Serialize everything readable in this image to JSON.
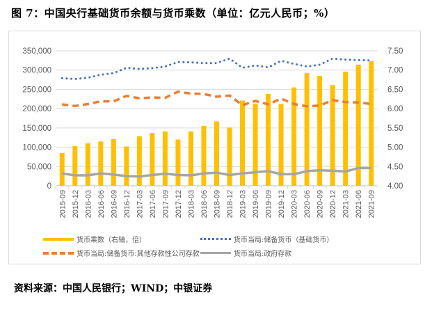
{
  "title": "图 7：中国央行基础货币余额与货币乘数（单位：亿元人民币；%）",
  "source": "资料来源：中国人民银行；WIND；中银证券",
  "colors": {
    "bar": "#FFC000",
    "base": "#4472C4",
    "other": "#ED7D31",
    "gov": "#A5A5A5",
    "grid": "#D9D9D9",
    "tick": "#595959"
  },
  "chart_data": {
    "type": "bar+line",
    "title": "",
    "categories": [
      "2015-09",
      "2015-12",
      "2016-03",
      "2016-06",
      "2016-09",
      "2016-12",
      "2017-03",
      "2017-06",
      "2017-09",
      "2017-12",
      "2018-03",
      "2018-06",
      "2018-09",
      "2018-12",
      "2019-03",
      "2019-06",
      "2019-09",
      "2019-12",
      "2020-03",
      "2020-06",
      "2020-09",
      "2020-12",
      "2021-03",
      "2021-06",
      "2021-09"
    ],
    "left_axis": {
      "ylim": [
        0,
        350000
      ],
      "ticks": [
        "0",
        "50,000",
        "100,000",
        "150,000",
        "200,000",
        "250,000",
        "300,000",
        "350,000"
      ]
    },
    "right_axis": {
      "ylim": [
        4.0,
        7.5
      ],
      "ticks": [
        "4.00",
        "4.50",
        "5.00",
        "5.50",
        "6.00",
        "6.50",
        "7.00",
        "7.50"
      ]
    },
    "grid": true,
    "legend_position": "bottom",
    "series": [
      {
        "name": "货币乘数（右轴，倍）",
        "type": "bar",
        "axis": "right",
        "values": [
          4.85,
          5.03,
          5.1,
          5.15,
          5.21,
          5.02,
          5.28,
          5.37,
          5.41,
          5.2,
          5.41,
          5.55,
          5.67,
          5.51,
          6.21,
          6.13,
          6.38,
          6.12,
          6.55,
          6.92,
          6.85,
          6.61,
          6.96,
          7.14,
          7.23
        ]
      },
      {
        "name": "货币当局:储备货币（基础货币）",
        "type": "line",
        "style": "dotted",
        "axis": "left",
        "values": [
          279000,
          277000,
          280000,
          288000,
          292000,
          306000,
          303000,
          305000,
          309000,
          321000,
          320000,
          318000,
          318000,
          330000,
          306000,
          312000,
          307000,
          324000,
          316000,
          309000,
          314000,
          330000,
          327000,
          326000,
          325000
        ]
      },
      {
        "name": "货币当局:储备货币:其他存款性公司存款",
        "type": "line",
        "style": "dashed",
        "axis": "left",
        "values": [
          211000,
          207000,
          212000,
          219000,
          219000,
          233000,
          227000,
          229000,
          228000,
          244000,
          239000,
          238000,
          231000,
          234000,
          209000,
          220000,
          211000,
          226000,
          212000,
          206000,
          208000,
          222000,
          217000,
          216000,
          212000
        ]
      },
      {
        "name": "货币当局:政府存款",
        "type": "line",
        "style": "solid",
        "axis": "left",
        "values": [
          32000,
          27000,
          27000,
          32000,
          29000,
          25000,
          24000,
          28000,
          31000,
          28000,
          27000,
          32000,
          34000,
          28000,
          32000,
          35000,
          38000,
          30000,
          30000,
          38000,
          40000,
          39000,
          37000,
          46000,
          46000
        ]
      }
    ]
  }
}
